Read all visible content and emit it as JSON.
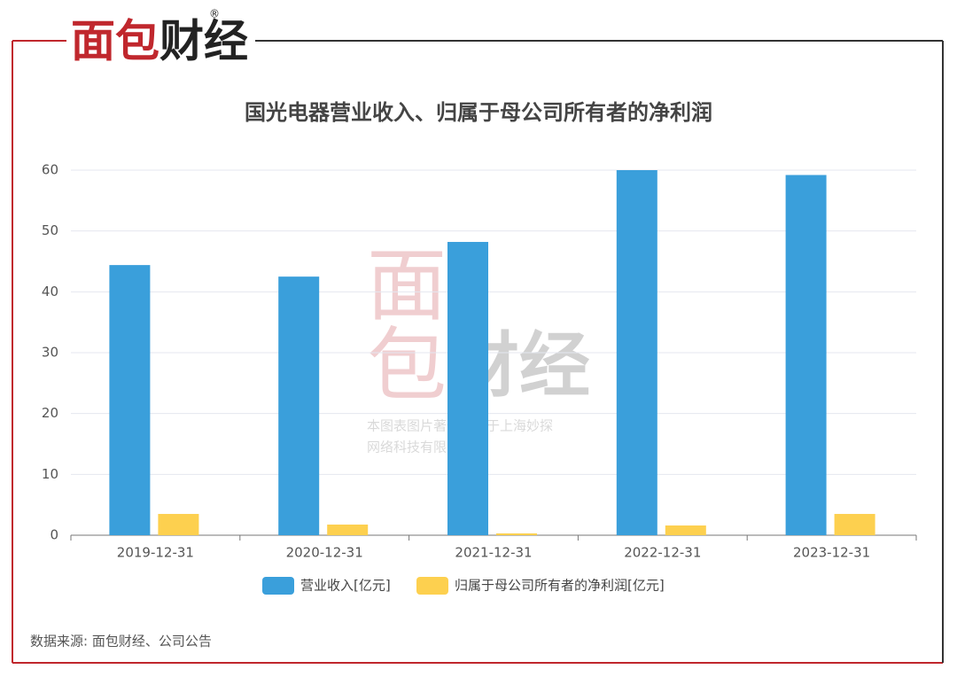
{
  "logo": {
    "parts": [
      "面包",
      "财经"
    ],
    "registered": "®"
  },
  "watermark": {
    "logo": [
      "面",
      "包",
      "财经"
    ],
    "lines": [
      "本图表图片著作权属于上海妙探",
      "网络科技有限公司"
    ]
  },
  "chart_data": {
    "type": "bar",
    "title": "国光电器营业收入、归属于母公司所有者的净利润",
    "categories": [
      "2019-12-31",
      "2020-12-31",
      "2021-12-31",
      "2022-12-31",
      "2023-12-31"
    ],
    "series": [
      {
        "name": "营业收入[亿元]",
        "color": "#3a9fdb",
        "values": [
          44.4,
          42.5,
          48.2,
          60.0,
          59.2
        ]
      },
      {
        "name": "归属于母公司所有者的净利润[亿元]",
        "color": "#fdd04f",
        "values": [
          3.5,
          1.75,
          0.3,
          1.6,
          3.5
        ]
      }
    ],
    "ylim": [
      0,
      60
    ],
    "yticks": [
      0,
      10,
      20,
      30,
      40,
      50,
      60
    ],
    "grid": true,
    "legend": "bottom",
    "source": "数据来源: 面包财经、公司公告"
  }
}
